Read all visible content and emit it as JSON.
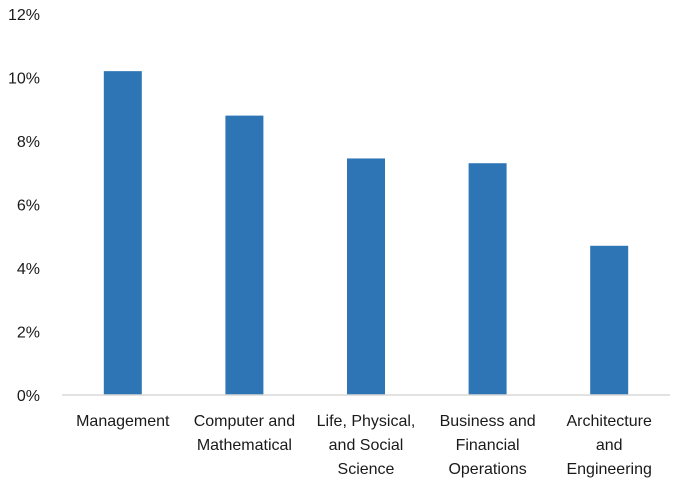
{
  "chart_data": {
    "type": "bar",
    "title": "",
    "xlabel": "",
    "ylabel": "",
    "categories": [
      [
        "Management"
      ],
      [
        "Computer and",
        "Mathematical"
      ],
      [
        "Life, Physical,",
        "and Social",
        "Science"
      ],
      [
        "Business and",
        "Financial",
        "Operations"
      ],
      [
        "Architecture",
        "and",
        "Engineering"
      ]
    ],
    "values": [
      10.2,
      8.8,
      7.45,
      7.3,
      4.7
    ],
    "ylim": [
      0,
      12
    ],
    "y_ticks": [
      0,
      2,
      4,
      6,
      8,
      10,
      12
    ],
    "y_tick_format": "percent",
    "grid": false,
    "legend": "none",
    "bar_color": "#2E75B6",
    "axis_color": "#D9D9D9"
  }
}
